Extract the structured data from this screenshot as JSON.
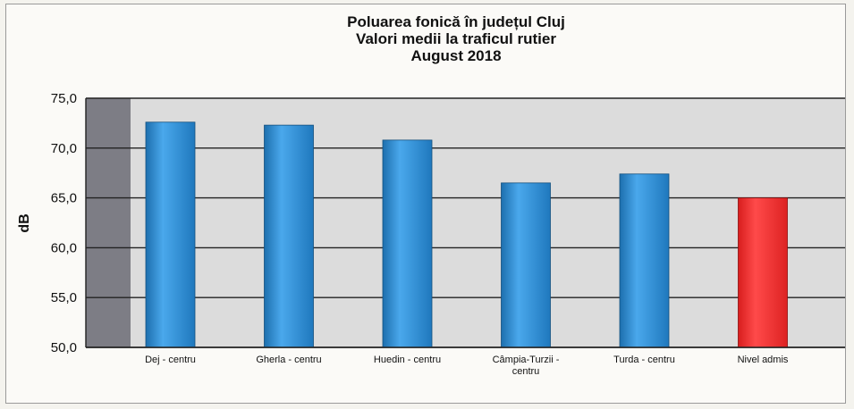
{
  "chart_data": {
    "type": "bar",
    "title": [
      "Poluarea fonică în județul Cluj",
      "Valori medii la traficul rutier",
      "August 2018"
    ],
    "xlabel": "",
    "ylabel": "dB",
    "ylim": [
      50,
      75
    ],
    "yticks": [
      "75,0",
      "70,0",
      "65,0",
      "60,0",
      "55,0",
      "50,0"
    ],
    "categories": [
      [
        "Dej - centru"
      ],
      [
        "Gherla - centru"
      ],
      [
        "Huedin - centru"
      ],
      [
        "Câmpia-Turzii -",
        "centru"
      ],
      [
        "Turda - centru"
      ],
      [
        "Nivel admis"
      ]
    ],
    "values": [
      72.6,
      72.3,
      70.8,
      66.5,
      67.4,
      65.0
    ],
    "colors": [
      "#2e8fd6",
      "#2e8fd6",
      "#2e8fd6",
      "#2e8fd6",
      "#2e8fd6",
      "#ef2b2b"
    ],
    "grid": true,
    "legend": "none",
    "plot_background": "#dcdcdc"
  }
}
